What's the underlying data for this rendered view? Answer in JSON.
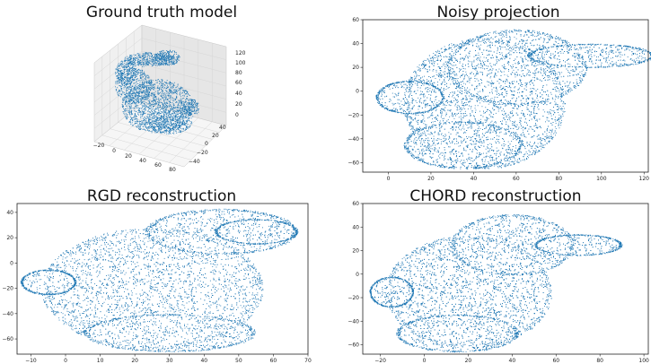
{
  "chart_data": [
    {
      "id": "gt",
      "type": "scatter3d",
      "title": "Ground truth model",
      "x_ticks": [
        "−20",
        "0",
        "20",
        "40",
        "60",
        "80"
      ],
      "y_ticks": [
        "40",
        "20",
        "0",
        "−20",
        "−40"
      ],
      "z_ticks": [
        "0",
        "20",
        "40",
        "60",
        "80",
        "100",
        "120"
      ],
      "color": "#1f77b4",
      "grid": true
    },
    {
      "id": "noisy",
      "type": "scatter",
      "title": "Noisy projection",
      "xlim": [
        -12,
        122
      ],
      "ylim": [
        -68,
        60
      ],
      "x_ticks": [
        0,
        20,
        40,
        60,
        80,
        100,
        120
      ],
      "y_ticks": [
        -60,
        -40,
        -20,
        0,
        20,
        40,
        60
      ],
      "color": "#1f77b4",
      "grid": false
    },
    {
      "id": "rgd",
      "type": "scatter",
      "title": "RGD reconstruction",
      "xlim": [
        -14,
        70
      ],
      "ylim": [
        -72,
        47
      ],
      "x_ticks": [
        -10,
        0,
        10,
        20,
        30,
        40,
        50,
        60,
        70
      ],
      "y_ticks": [
        -60,
        -40,
        -20,
        0,
        20,
        40
      ],
      "color": "#1f77b4",
      "grid": false
    },
    {
      "id": "chord",
      "type": "scatter",
      "title": "CHORD reconstruction",
      "xlim": [
        -28,
        102
      ],
      "ylim": [
        -68,
        60
      ],
      "x_ticks": [
        -20,
        0,
        20,
        40,
        60,
        80,
        100
      ],
      "y_ticks": [
        -60,
        -40,
        -20,
        0,
        20,
        40,
        60
      ],
      "color": "#1f77b4",
      "grid": false
    }
  ]
}
